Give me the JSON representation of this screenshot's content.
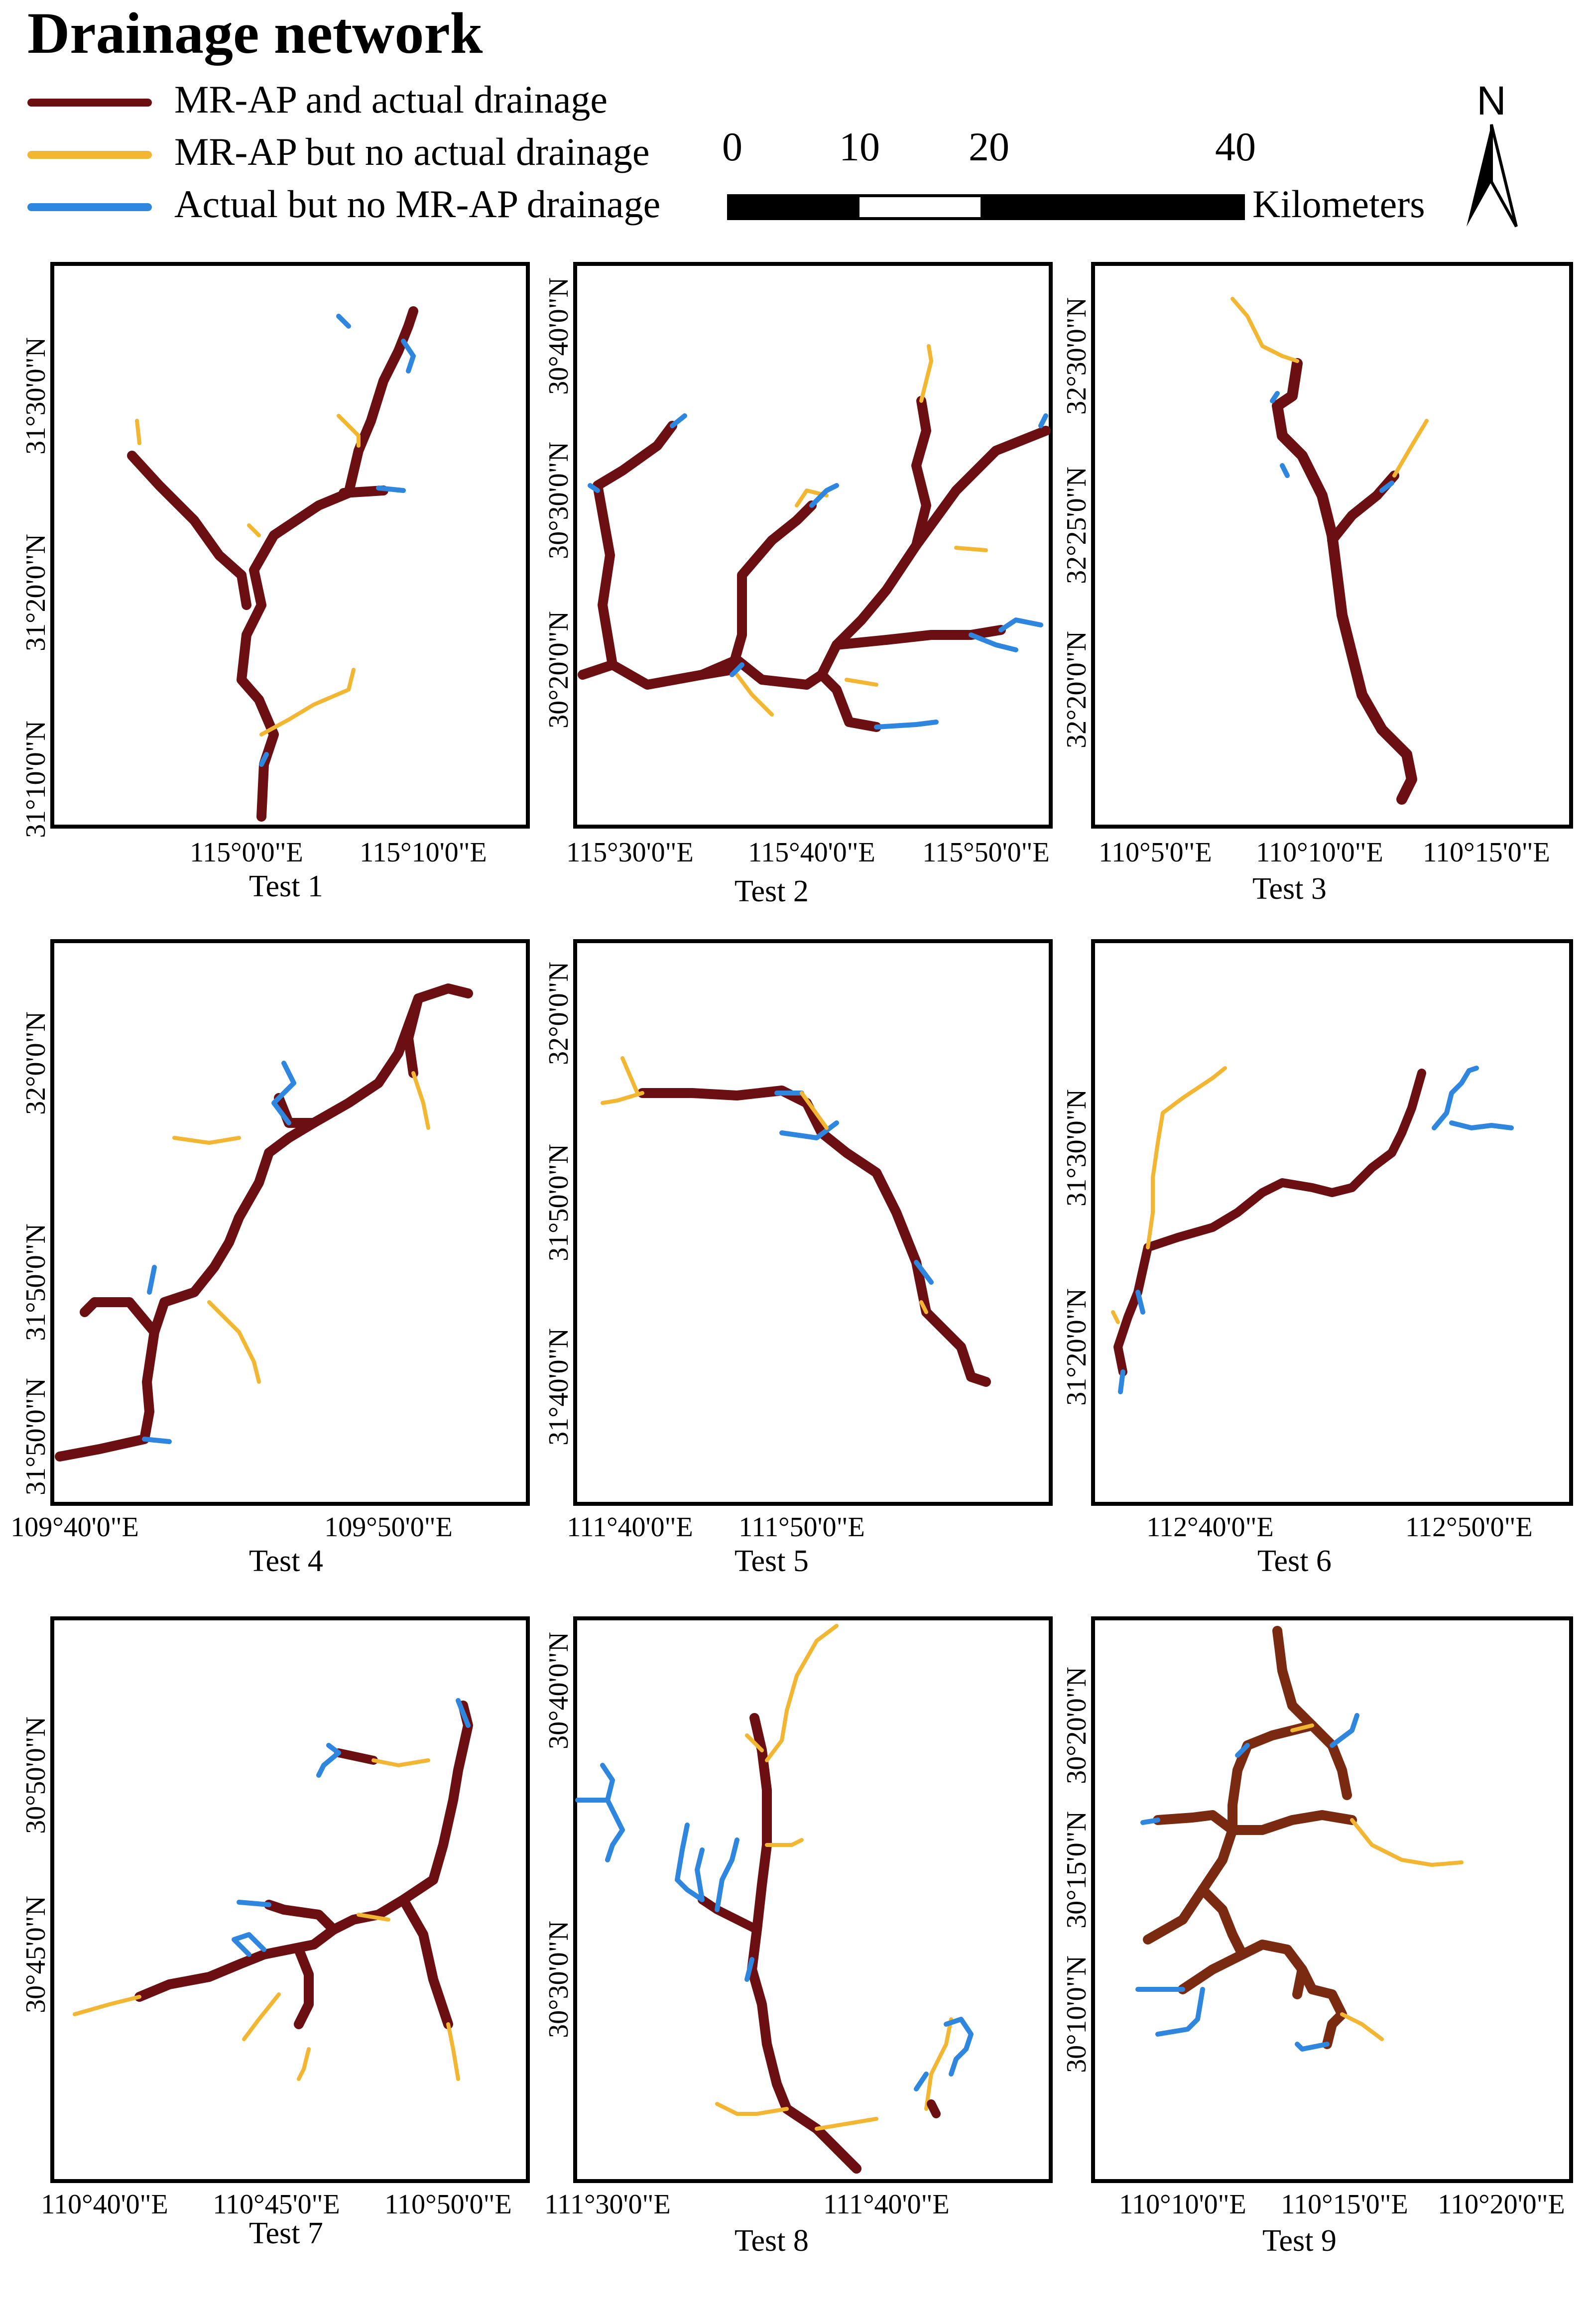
{
  "title": "Drainage network",
  "legend": {
    "items": [
      {
        "label": "MR-AP and actual drainage",
        "color": "#6b0f12"
      },
      {
        "label": "MR-AP but no actual drainage",
        "color": "#f2b632"
      },
      {
        "label": "Actual but no MR-AP drainage",
        "color": "#2f86de"
      }
    ]
  },
  "scale_bar": {
    "ticks": [
      "0",
      "10",
      "20",
      "40"
    ],
    "units": "Kilometers"
  },
  "north_arrow": {
    "label": "N",
    "icon": "north-arrow-icon"
  },
  "colors": {
    "matched": "#6b0f12",
    "matched_test9": "#7a2a10",
    "mrap_only": "#f2b632",
    "actual_only": "#2f86de"
  },
  "panels": [
    {
      "name": "Test 1",
      "yticks": [
        "31°30'0\"N",
        "31°20'0\"N",
        "31°10'0\"N"
      ],
      "xticks": [
        "115°0'0\"E",
        "115°10'0\"E"
      ]
    },
    {
      "name": "Test 2",
      "yticks": [
        "30°40'0\"N",
        "30°30'0\"N",
        "30°20'0\"N"
      ],
      "xticks": [
        "115°30'0\"E",
        "115°40'0\"E",
        "115°50'0\"E"
      ]
    },
    {
      "name": "Test 3",
      "yticks": [
        "32°30'0\"N",
        "32°25'0\"N",
        "32°20'0\"N"
      ],
      "xticks": [
        "110°5'0\"E",
        "110°10'0\"E",
        "110°15'0\"E"
      ]
    },
    {
      "name": "Test 4",
      "yticks": [
        "32°0'0\"N",
        "31°50'0\"N",
        "31°50'0\"N"
      ],
      "xticks": [
        "109°40'0\"E",
        "109°50'0\"E"
      ]
    },
    {
      "name": "Test 5",
      "yticks": [
        "32°0'0\"N",
        "31°50'0\"N",
        "31°40'0\"N"
      ],
      "xticks": [
        "111°40'0\"E",
        "111°50'0\"E"
      ]
    },
    {
      "name": "Test 6",
      "yticks": [
        "31°30'0\"N",
        "31°20'0\"N"
      ],
      "xticks": [
        "112°40'0\"E",
        "112°50'0\"E"
      ]
    },
    {
      "name": "Test 7",
      "yticks": [
        "30°50'0\"N",
        "30°45'0\"N"
      ],
      "xticks": [
        "110°40'0\"E",
        "110°45'0\"E",
        "110°50'0\"E"
      ]
    },
    {
      "name": "Test 8",
      "yticks": [
        "30°40'0\"N",
        "30°30'0\"N"
      ],
      "xticks": [
        "111°30'0\"E",
        "111°40'0\"E"
      ]
    },
    {
      "name": "Test 9",
      "yticks": [
        "30°20'0\"N",
        "30°15'0\"N",
        "30°10'0\"N"
      ],
      "xticks": [
        "110°10'0\"E",
        "110°15'0\"E",
        "110°20'0\"E"
      ]
    }
  ]
}
